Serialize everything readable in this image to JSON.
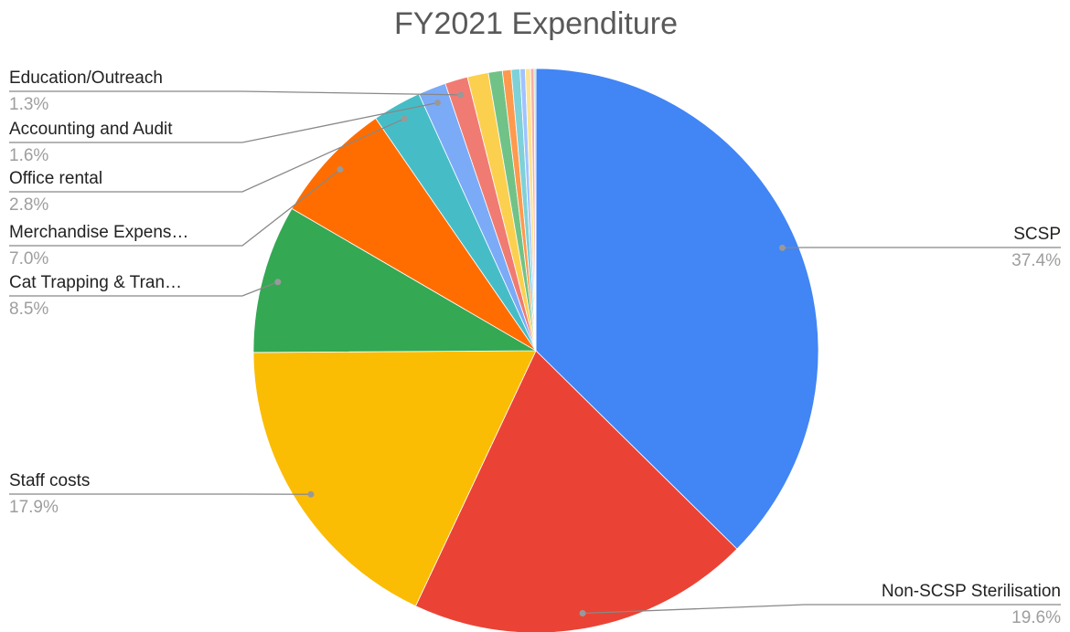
{
  "chart_data": {
    "type": "pie",
    "title": "FY2021 Expenditure",
    "categories": [
      "SCSP",
      "Non-SCSP Sterilisation",
      "Staff costs",
      "Cat Trapping & Tran…",
      "Merchandise Expens…",
      "Office rental",
      "Accounting and Audit",
      "Education/Outreach",
      null,
      null,
      null,
      null,
      null,
      null,
      null,
      null
    ],
    "values": [
      37.4,
      19.6,
      17.9,
      8.5,
      7.0,
      2.8,
      1.6,
      1.3,
      1.2,
      0.8,
      0.5,
      0.5,
      0.3,
      0.3,
      0.2,
      0.1
    ],
    "value_labels": [
      "37.4%",
      "19.6%",
      "17.9%",
      "8.5%",
      "7.0%",
      "2.8%",
      "1.6%",
      "1.3%",
      null,
      null,
      null,
      null,
      null,
      null,
      null,
      null
    ],
    "colors": [
      "#4285f4",
      "#ea4335",
      "#fbbc04",
      "#34a853",
      "#ff6d01",
      "#46bdc6",
      "#7baaf7",
      "#f07b72",
      "#fcd04f",
      "#71c287",
      "#ff994d",
      "#7ed1d7",
      "#a0c3ff",
      "#fde293",
      "#f6aea9",
      "#b3dab8"
    ]
  }
}
